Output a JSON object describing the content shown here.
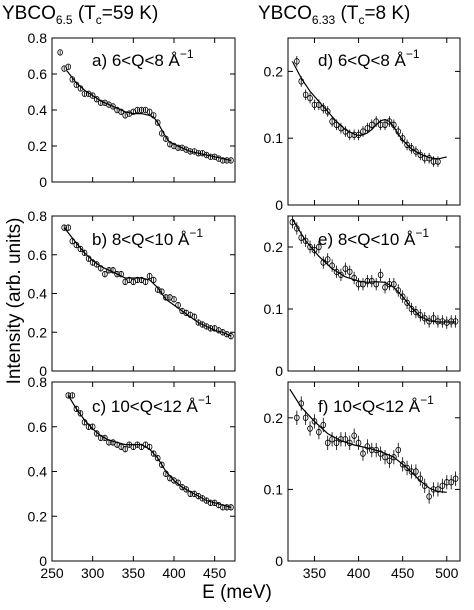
{
  "figure": {
    "column_titles": [
      {
        "compound": "YBCO",
        "subscript": "6.5",
        "tc_text": "(T",
        "tc_sub": "c",
        "tc_value": "=59 K)"
      },
      {
        "compound": "YBCO",
        "subscript": "6.33",
        "tc_text": "(T",
        "tc_sub": "c",
        "tc_value": "=8 K)"
      }
    ],
    "ylabel": "Intensity (arb. units)",
    "xlabel": "E (meV)"
  },
  "chart_data": [
    {
      "type": "scatter",
      "panel_label": "a) 6<Q<8 Å",
      "superscript": "−1",
      "xlim": [
        250,
        475
      ],
      "ylim": [
        0,
        0.8
      ],
      "xticks": [
        250,
        300,
        350,
        400,
        450
      ],
      "yticks": [
        0,
        0.2,
        0.4,
        0.6,
        0.8
      ],
      "show_xtick_labels": false,
      "points": {
        "x": [
          260,
          265,
          270,
          275,
          280,
          285,
          290,
          295,
          300,
          305,
          310,
          315,
          320,
          325,
          330,
          335,
          340,
          345,
          350,
          355,
          360,
          365,
          370,
          375,
          380,
          385,
          390,
          395,
          400,
          405,
          410,
          415,
          420,
          425,
          430,
          435,
          440,
          445,
          450,
          455,
          460,
          465,
          470
        ],
        "y": [
          0.72,
          0.63,
          0.64,
          0.57,
          0.54,
          0.52,
          0.49,
          0.49,
          0.48,
          0.46,
          0.44,
          0.44,
          0.43,
          0.42,
          0.4,
          0.39,
          0.37,
          0.38,
          0.39,
          0.4,
          0.4,
          0.4,
          0.39,
          0.37,
          0.33,
          0.27,
          0.24,
          0.21,
          0.2,
          0.19,
          0.19,
          0.18,
          0.17,
          0.17,
          0.16,
          0.16,
          0.15,
          0.14,
          0.14,
          0.13,
          0.12,
          0.12,
          0.12
        ],
        "err": 0.012
      },
      "fit": {
        "x": [
          268,
          280,
          290,
          300,
          310,
          320,
          330,
          340,
          350,
          360,
          370,
          375,
          380,
          385,
          390,
          395,
          400,
          410,
          420,
          430,
          440,
          450,
          460,
          470
        ],
        "y": [
          0.62,
          0.55,
          0.51,
          0.48,
          0.45,
          0.43,
          0.41,
          0.39,
          0.38,
          0.38,
          0.37,
          0.36,
          0.33,
          0.29,
          0.25,
          0.22,
          0.21,
          0.19,
          0.17,
          0.16,
          0.15,
          0.14,
          0.13,
          0.12
        ]
      }
    },
    {
      "type": "scatter",
      "panel_label": "b) 8<Q<10 Å",
      "superscript": "−1",
      "xlim": [
        250,
        475
      ],
      "ylim": [
        0,
        0.8
      ],
      "xticks": [
        250,
        300,
        350,
        400,
        450
      ],
      "yticks": [
        0,
        0.2,
        0.4,
        0.6,
        0.8
      ],
      "show_xtick_labels": false,
      "points": {
        "x": [
          265,
          270,
          275,
          280,
          285,
          290,
          295,
          300,
          305,
          310,
          315,
          320,
          325,
          330,
          335,
          340,
          345,
          350,
          355,
          360,
          365,
          370,
          375,
          380,
          385,
          390,
          395,
          400,
          405,
          410,
          415,
          420,
          425,
          430,
          435,
          440,
          445,
          450,
          455,
          460,
          465,
          470
        ],
        "y": [
          0.74,
          0.74,
          0.67,
          0.65,
          0.63,
          0.61,
          0.58,
          0.56,
          0.55,
          0.53,
          0.5,
          0.52,
          0.52,
          0.5,
          0.5,
          0.46,
          0.47,
          0.46,
          0.47,
          0.47,
          0.46,
          0.49,
          0.47,
          0.42,
          0.41,
          0.38,
          0.38,
          0.37,
          0.34,
          0.31,
          0.3,
          0.29,
          0.28,
          0.25,
          0.24,
          0.23,
          0.22,
          0.22,
          0.21,
          0.2,
          0.19,
          0.18
        ],
        "err": 0.015
      },
      "fit": {
        "x": [
          265,
          280,
          290,
          300,
          310,
          320,
          330,
          340,
          350,
          360,
          370,
          375,
          380,
          385,
          390,
          400,
          410,
          420,
          430,
          440,
          450,
          460,
          470
        ],
        "y": [
          0.74,
          0.66,
          0.61,
          0.57,
          0.54,
          0.52,
          0.5,
          0.48,
          0.48,
          0.48,
          0.47,
          0.45,
          0.43,
          0.4,
          0.37,
          0.34,
          0.31,
          0.28,
          0.25,
          0.23,
          0.21,
          0.2,
          0.18
        ]
      }
    },
    {
      "type": "scatter",
      "panel_label": "c) 10<Q<12 Å",
      "superscript": "−1",
      "xlim": [
        250,
        475
      ],
      "ylim": [
        0,
        0.8
      ],
      "xticks": [
        250,
        300,
        350,
        400,
        450
      ],
      "yticks": [
        0,
        0.2,
        0.4,
        0.6,
        0.8
      ],
      "show_xtick_labels": true,
      "points": {
        "x": [
          270,
          275,
          280,
          285,
          290,
          295,
          300,
          305,
          310,
          315,
          320,
          325,
          330,
          335,
          340,
          345,
          350,
          355,
          360,
          365,
          370,
          375,
          380,
          385,
          390,
          395,
          400,
          405,
          410,
          415,
          420,
          425,
          430,
          435,
          440,
          445,
          450,
          455,
          460,
          465,
          470
        ],
        "y": [
          0.74,
          0.74,
          0.68,
          0.66,
          0.62,
          0.6,
          0.6,
          0.57,
          0.55,
          0.55,
          0.53,
          0.53,
          0.52,
          0.51,
          0.5,
          0.52,
          0.51,
          0.52,
          0.51,
          0.52,
          0.51,
          0.48,
          0.46,
          0.43,
          0.39,
          0.37,
          0.36,
          0.35,
          0.33,
          0.32,
          0.3,
          0.3,
          0.29,
          0.28,
          0.27,
          0.26,
          0.26,
          0.25,
          0.24,
          0.24,
          0.24
        ],
        "err": 0.012
      },
      "fit": {
        "x": [
          270,
          280,
          290,
          300,
          310,
          320,
          330,
          340,
          350,
          360,
          370,
          375,
          380,
          385,
          390,
          400,
          410,
          420,
          430,
          440,
          450,
          460,
          470
        ],
        "y": [
          0.74,
          0.68,
          0.63,
          0.59,
          0.56,
          0.54,
          0.53,
          0.52,
          0.52,
          0.52,
          0.5,
          0.48,
          0.46,
          0.43,
          0.4,
          0.36,
          0.33,
          0.31,
          0.29,
          0.27,
          0.26,
          0.25,
          0.24
        ]
      }
    },
    {
      "type": "scatter",
      "panel_label": "d) 6<Q<8 Å",
      "superscript": "−1",
      "xlim": [
        320,
        515
      ],
      "ylim": [
        0,
        0.25
      ],
      "xticks": [
        350,
        400,
        450,
        500
      ],
      "yticks": [
        0,
        0.1,
        0.2
      ],
      "show_xtick_labels": false,
      "points": {
        "x": [
          330,
          335,
          340,
          345,
          350,
          355,
          360,
          365,
          370,
          375,
          380,
          385,
          390,
          395,
          400,
          405,
          410,
          415,
          420,
          425,
          430,
          435,
          440,
          445,
          450,
          455,
          460,
          465,
          470,
          475,
          480,
          485,
          490
        ],
        "y": [
          0.215,
          0.185,
          0.165,
          0.16,
          0.15,
          0.15,
          0.145,
          0.14,
          0.125,
          0.12,
          0.115,
          0.11,
          0.105,
          0.105,
          0.105,
          0.11,
          0.115,
          0.12,
          0.125,
          0.12,
          0.12,
          0.125,
          0.12,
          0.11,
          0.1,
          0.09,
          0.085,
          0.08,
          0.075,
          0.07,
          0.07,
          0.065,
          0.065
        ],
        "err": 0.008
      },
      "fit": {
        "x": [
          325,
          335,
          345,
          355,
          365,
          375,
          385,
          395,
          400,
          405,
          410,
          415,
          420,
          425,
          430,
          435,
          440,
          445,
          450,
          460,
          470,
          480,
          490,
          500
        ],
        "y": [
          0.215,
          0.19,
          0.17,
          0.155,
          0.14,
          0.125,
          0.113,
          0.106,
          0.104,
          0.105,
          0.108,
          0.113,
          0.12,
          0.126,
          0.128,
          0.125,
          0.117,
          0.106,
          0.097,
          0.084,
          0.076,
          0.071,
          0.069,
          0.072
        ]
      }
    },
    {
      "type": "scatter",
      "panel_label": "e) 8<Q<10 Å",
      "superscript": "−1",
      "xlim": [
        320,
        515
      ],
      "ylim": [
        0,
        0.25
      ],
      "xticks": [
        350,
        400,
        450,
        500
      ],
      "yticks": [
        0,
        0.1,
        0.2
      ],
      "show_xtick_labels": false,
      "points": {
        "x": [
          325,
          330,
          335,
          340,
          345,
          350,
          355,
          360,
          365,
          370,
          375,
          380,
          385,
          390,
          395,
          400,
          405,
          410,
          415,
          420,
          425,
          430,
          435,
          440,
          445,
          450,
          455,
          460,
          465,
          470,
          475,
          480,
          485,
          490,
          495,
          500,
          505,
          510
        ],
        "y": [
          0.24,
          0.23,
          0.215,
          0.21,
          0.2,
          0.195,
          0.2,
          0.175,
          0.18,
          0.17,
          0.16,
          0.155,
          0.165,
          0.16,
          0.15,
          0.14,
          0.14,
          0.145,
          0.145,
          0.14,
          0.155,
          0.135,
          0.14,
          0.14,
          0.13,
          0.12,
          0.11,
          0.1,
          0.095,
          0.09,
          0.085,
          0.08,
          0.085,
          0.08,
          0.08,
          0.078,
          0.08,
          0.08
        ],
        "err": 0.01
      },
      "fit": {
        "x": [
          325,
          340,
          355,
          370,
          385,
          400,
          410,
          420,
          430,
          440,
          450,
          460,
          470,
          480,
          490,
          500,
          510
        ],
        "y": [
          0.245,
          0.21,
          0.185,
          0.165,
          0.152,
          0.145,
          0.143,
          0.144,
          0.143,
          0.135,
          0.12,
          0.102,
          0.088,
          0.081,
          0.079,
          0.079,
          0.079
        ]
      }
    },
    {
      "type": "scatter",
      "panel_label": "f) 10<Q<12 Å",
      "superscript": "−1",
      "xlim": [
        320,
        515
      ],
      "ylim": [
        0,
        0.25
      ],
      "xticks": [
        350,
        400,
        450,
        500
      ],
      "yticks": [
        0,
        0.1,
        0.2
      ],
      "show_xtick_labels": true,
      "points": {
        "x": [
          330,
          335,
          340,
          345,
          350,
          355,
          360,
          365,
          370,
          375,
          380,
          385,
          390,
          395,
          400,
          405,
          410,
          415,
          420,
          425,
          430,
          435,
          440,
          445,
          450,
          455,
          460,
          465,
          470,
          475,
          480,
          485,
          490,
          495,
          500,
          505,
          510
        ],
        "y": [
          0.2,
          0.22,
          0.2,
          0.185,
          0.195,
          0.18,
          0.19,
          0.165,
          0.17,
          0.165,
          0.17,
          0.17,
          0.165,
          0.175,
          0.165,
          0.15,
          0.16,
          0.155,
          0.155,
          0.15,
          0.145,
          0.14,
          0.145,
          0.155,
          0.135,
          0.13,
          0.125,
          0.125,
          0.115,
          0.105,
          0.09,
          0.1,
          0.1,
          0.105,
          0.11,
          0.11,
          0.115
        ],
        "err": 0.01
      },
      "fit": {
        "x": [
          322,
          335,
          350,
          365,
          380,
          395,
          410,
          425,
          440,
          455,
          470,
          480,
          490,
          500
        ],
        "y": [
          0.24,
          0.215,
          0.195,
          0.178,
          0.168,
          0.162,
          0.158,
          0.153,
          0.145,
          0.13,
          0.112,
          0.102,
          0.097,
          0.096
        ]
      }
    }
  ]
}
